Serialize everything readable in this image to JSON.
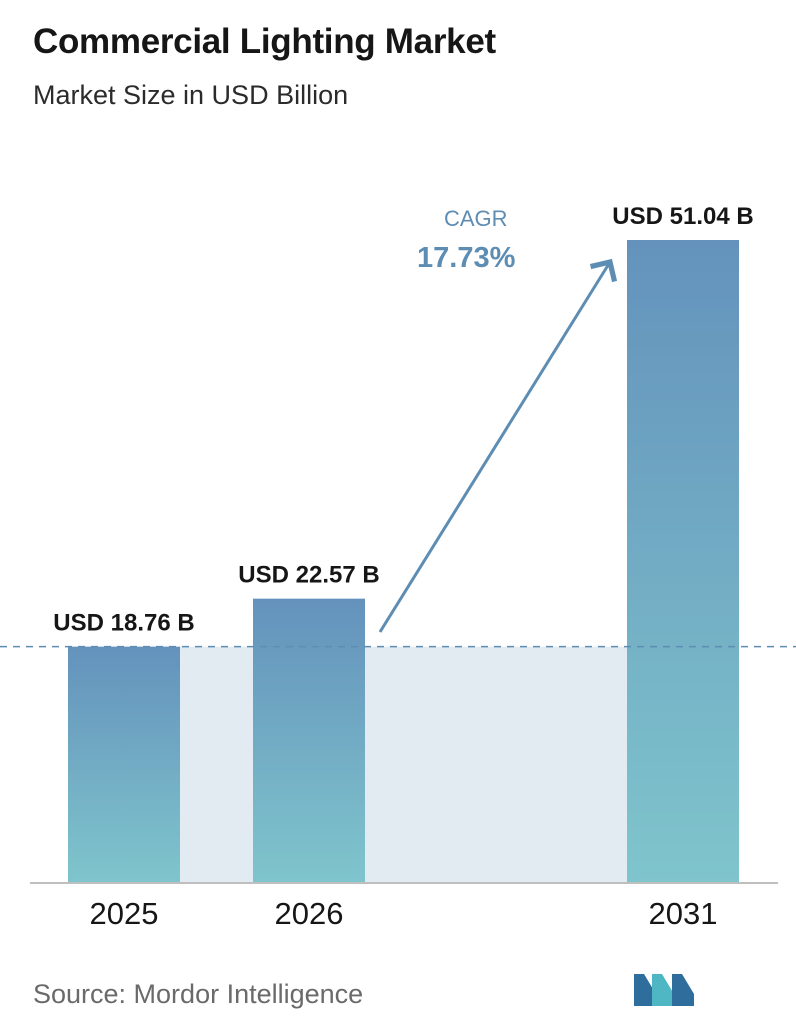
{
  "title": "Commercial Lighting Market",
  "subtitle": "Market Size in USD Billion",
  "cagr": {
    "label": "CAGR",
    "value": "17.73%"
  },
  "source": "Source:  Mordor Intelligence",
  "logo": {
    "icon": "mordor-intelligence-logo-icon",
    "colors": [
      "#2f6d9d",
      "#4fb6c3"
    ]
  },
  "colors": {
    "bar_top": "#6492bc",
    "bar_bottom": "#7fc5cc",
    "band": "#e2eaf2",
    "accent": "#5e8db4",
    "dashed_line": "#5e8db4",
    "axis": "#bfbfbf"
  },
  "chart_data": {
    "type": "bar",
    "title": "Commercial Lighting Market",
    "subtitle": "Market Size in USD Billion",
    "categories": [
      "2025",
      "2026",
      "2031"
    ],
    "values": [
      18.76,
      22.57,
      51.04
    ],
    "data_labels": [
      "USD 18.76 B",
      "USD 22.57 B",
      "USD 51.04 B"
    ],
    "unit": "USD Billion",
    "ylim": [
      0,
      51.04
    ],
    "grid": false,
    "legend": "none",
    "reference_line": {
      "value": 18.76,
      "style": "dashed"
    },
    "annotation": {
      "text": "CAGR",
      "value": "17.73%"
    }
  }
}
